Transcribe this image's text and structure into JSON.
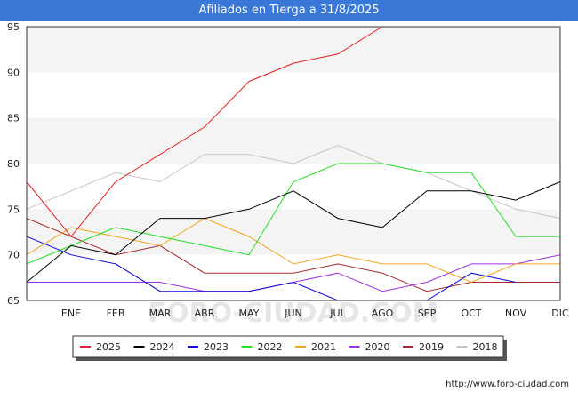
{
  "chart_data": {
    "type": "line",
    "title": "Afiliados en Tierga a 31/8/2025",
    "xlabel": "",
    "ylabel": "",
    "ylim": [
      65,
      95
    ],
    "yticks": [
      65,
      70,
      75,
      80,
      85,
      90,
      95
    ],
    "categories": [
      "",
      "ENE",
      "FEB",
      "MAR",
      "ABR",
      "MAY",
      "JUN",
      "JUL",
      "AGO",
      "SEP",
      "OCT",
      "NOV",
      "DIC"
    ],
    "series": [
      {
        "name": "2025",
        "color": "#e8201e",
        "values": [
          78,
          72,
          78,
          81,
          84,
          89,
          91,
          92,
          95,
          null,
          null,
          null,
          null
        ]
      },
      {
        "name": "2024",
        "color": "#000000",
        "values": [
          67,
          71,
          70,
          74,
          74,
          75,
          77,
          74,
          73,
          77,
          77,
          76,
          78
        ]
      },
      {
        "name": "2023",
        "color": "#0a0adc",
        "values": [
          72,
          70,
          69,
          66,
          66,
          66,
          67,
          65,
          null,
          65,
          68,
          67,
          null
        ]
      },
      {
        "name": "2022",
        "color": "#22e022",
        "values": [
          69,
          71,
          73,
          72,
          71,
          70,
          78,
          80,
          80,
          79,
          79,
          72,
          72
        ]
      },
      {
        "name": "2021",
        "color": "#f4a41e",
        "values": [
          70,
          73,
          72,
          71,
          74,
          72,
          69,
          70,
          69,
          69,
          67,
          69,
          69
        ]
      },
      {
        "name": "2020",
        "color": "#a030e0",
        "values": [
          67,
          67,
          67,
          67,
          66,
          66,
          67,
          68,
          66,
          67,
          69,
          69,
          70
        ]
      },
      {
        "name": "2019",
        "color": "#a82a2a",
        "values": [
          74,
          72,
          70,
          71,
          68,
          68,
          68,
          69,
          68,
          66,
          67,
          67,
          67
        ]
      },
      {
        "name": "2018",
        "color": "#c4c4c4",
        "values": [
          75,
          77,
          79,
          78,
          81,
          81,
          80,
          82,
          80,
          79,
          77,
          75,
          74
        ]
      }
    ],
    "legend_position": "bottom",
    "grid": false,
    "watermark": "FORO-CIUDAD.COM"
  },
  "footer": {
    "credit": "http://www.foro-ciudad.com"
  }
}
